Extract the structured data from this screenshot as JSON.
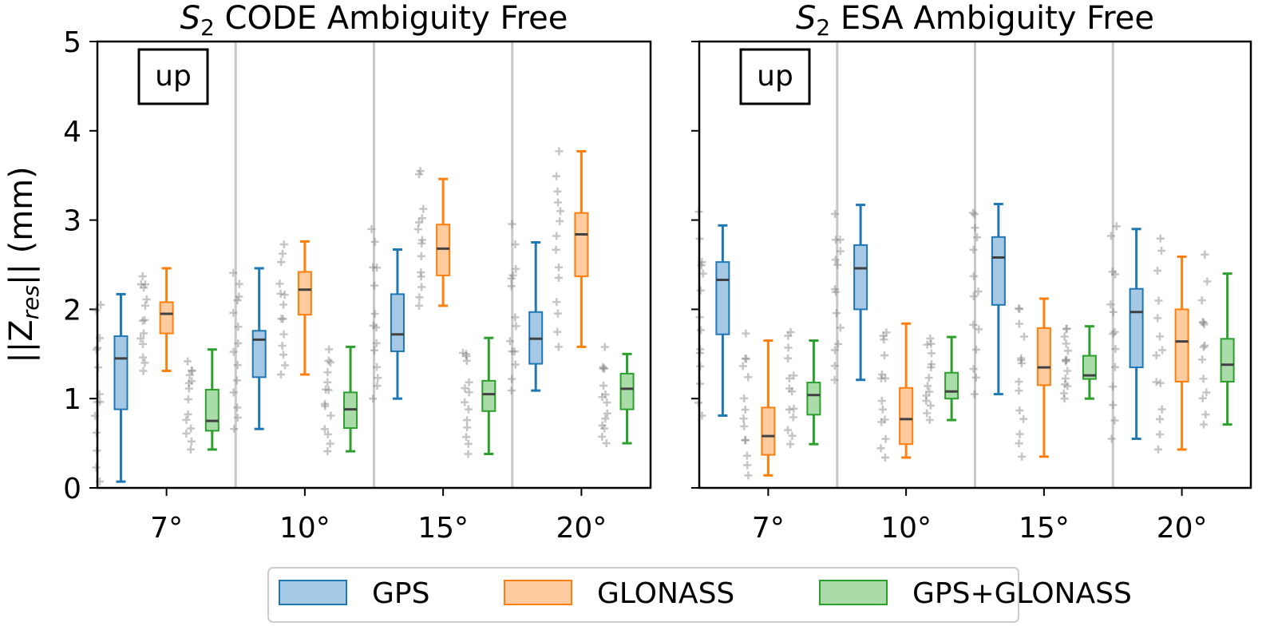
{
  "chart_data": [
    {
      "type": "box",
      "title": {
        "base": "S",
        "sub": "2",
        "rest": " CODE Ambiguity Free"
      },
      "ylabel": {
        "pre": "||Z",
        "sub": "res",
        "post": "|| (mm)"
      },
      "ylim": [
        0,
        5
      ],
      "yticks": [
        "0",
        "1",
        "2",
        "3",
        "4",
        "5"
      ],
      "categories": [
        "7°",
        "10°",
        "15°",
        "20°"
      ],
      "annotation": "up",
      "series": [
        {
          "name": "GPS",
          "boxes": [
            {
              "low": 0.07,
              "q1": 0.88,
              "median": 1.45,
              "q3": 1.7,
              "high": 2.17
            },
            {
              "low": 0.66,
              "q1": 1.24,
              "median": 1.66,
              "q3": 1.76,
              "high": 2.46
            },
            {
              "low": 1.0,
              "q1": 1.53,
              "median": 1.72,
              "q3": 2.17,
              "high": 2.67
            },
            {
              "low": 1.09,
              "q1": 1.39,
              "median": 1.67,
              "q3": 1.97,
              "high": 2.75
            }
          ]
        },
        {
          "name": "GLONASS",
          "boxes": [
            {
              "low": 1.31,
              "q1": 1.73,
              "median": 1.95,
              "q3": 2.08,
              "high": 2.46
            },
            {
              "low": 1.27,
              "q1": 1.94,
              "median": 2.22,
              "q3": 2.42,
              "high": 2.76
            },
            {
              "low": 2.04,
              "q1": 2.38,
              "median": 2.68,
              "q3": 2.95,
              "high": 3.46
            },
            {
              "low": 1.58,
              "q1": 2.37,
              "median": 2.84,
              "q3": 3.08,
              "high": 3.77
            }
          ]
        },
        {
          "name": "GPS+GLONASS",
          "boxes": [
            {
              "low": 0.43,
              "q1": 0.64,
              "median": 0.75,
              "q3": 1.1,
              "high": 1.55
            },
            {
              "low": 0.41,
              "q1": 0.67,
              "median": 0.88,
              "q3": 1.07,
              "high": 1.58
            },
            {
              "low": 0.38,
              "q1": 0.86,
              "median": 1.05,
              "q3": 1.2,
              "high": 1.68
            },
            {
              "low": 0.5,
              "q1": 0.88,
              "median": 1.11,
              "q3": 1.28,
              "high": 1.5
            }
          ]
        }
      ]
    },
    {
      "type": "box",
      "title": {
        "base": "S",
        "sub": "2",
        "rest": " ESA Ambiguity Free"
      },
      "ylim": [
        0,
        5
      ],
      "categories": [
        "7°",
        "10°",
        "15°",
        "20°"
      ],
      "annotation": "up",
      "series": [
        {
          "name": "GPS",
          "boxes": [
            {
              "low": 0.81,
              "q1": 1.72,
              "median": 2.33,
              "q3": 2.53,
              "high": 2.94
            },
            {
              "low": 1.21,
              "q1": 2.0,
              "median": 2.46,
              "q3": 2.72,
              "high": 3.17
            },
            {
              "low": 1.05,
              "q1": 2.05,
              "median": 2.58,
              "q3": 2.81,
              "high": 3.18
            },
            {
              "low": 0.55,
              "q1": 1.35,
              "median": 1.97,
              "q3": 2.23,
              "high": 2.9
            }
          ]
        },
        {
          "name": "GLONASS",
          "boxes": [
            {
              "low": 0.14,
              "q1": 0.37,
              "median": 0.58,
              "q3": 0.9,
              "high": 1.65
            },
            {
              "low": 0.34,
              "q1": 0.49,
              "median": 0.77,
              "q3": 1.12,
              "high": 1.84
            },
            {
              "low": 0.35,
              "q1": 1.15,
              "median": 1.35,
              "q3": 1.79,
              "high": 2.12
            },
            {
              "low": 0.43,
              "q1": 1.19,
              "median": 1.64,
              "q3": 2.0,
              "high": 2.59
            }
          ]
        },
        {
          "name": "GPS+GLONASS",
          "boxes": [
            {
              "low": 0.49,
              "q1": 0.82,
              "median": 1.04,
              "q3": 1.18,
              "high": 1.65
            },
            {
              "low": 0.76,
              "q1": 1.0,
              "median": 1.08,
              "q3": 1.29,
              "high": 1.69
            },
            {
              "low": 1.0,
              "q1": 1.22,
              "median": 1.26,
              "q3": 1.48,
              "high": 1.81
            },
            {
              "low": 0.71,
              "q1": 1.19,
              "median": 1.38,
              "q3": 1.67,
              "high": 2.4
            }
          ]
        }
      ]
    }
  ],
  "legend": {
    "placement": "bottom-center",
    "entries": [
      {
        "name": "GPS",
        "edge": "#1f77b4",
        "fill": "#a5c8e4"
      },
      {
        "name": "GLONASS",
        "edge": "#ff7f0e",
        "fill": "#ffcb9f"
      },
      {
        "name": "GPS+GLONASS",
        "edge": "#2ca02c",
        "fill": "#aadcaa"
      }
    ]
  },
  "colors": {
    "median": "#404040",
    "separator": "#c8c8c8",
    "scatter": "#808080"
  }
}
